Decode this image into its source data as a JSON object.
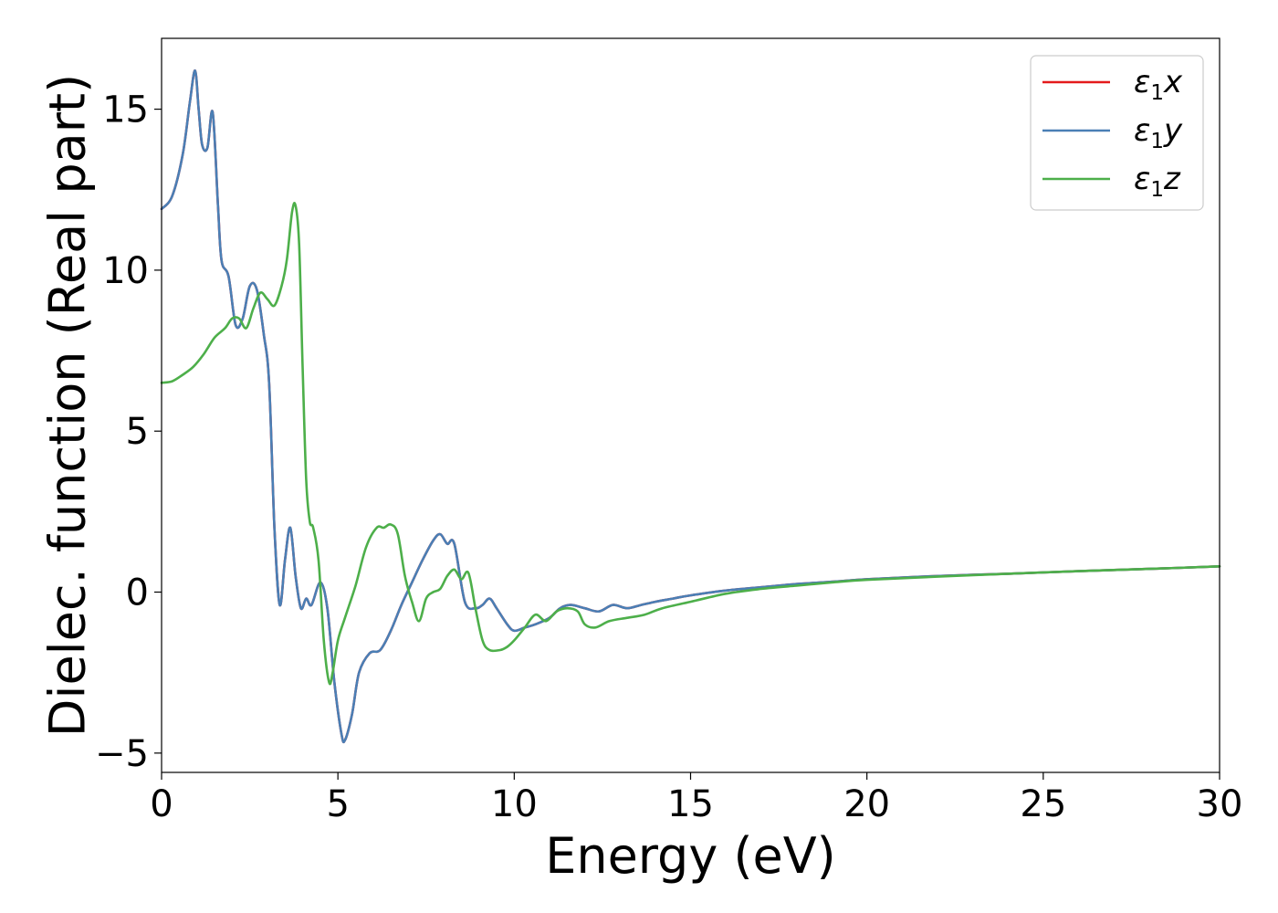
{
  "chart_data": {
    "type": "line",
    "xlabel": "Energy (eV)",
    "ylabel": "Dielec. function (Real part)",
    "xlim": [
      0,
      30
    ],
    "ylim": [
      -5.6,
      17.2
    ],
    "xticks": [
      0,
      5,
      10,
      15,
      20,
      25,
      30
    ],
    "xtick_labels": [
      "0",
      "5",
      "10",
      "15",
      "20",
      "25",
      "30"
    ],
    "yticks": [
      -5,
      0,
      5,
      10,
      15
    ],
    "ytick_labels": [
      "−5",
      "0",
      "5",
      "10",
      "15"
    ],
    "grid": false,
    "legend_position": "top-right",
    "series": [
      {
        "name": "ε₁x",
        "legend_base": "ε",
        "legend_sub": "1",
        "legend_suffix": "x",
        "color": "#e41a1c",
        "x": [
          0,
          0.3,
          0.6,
          0.8,
          0.95,
          1.05,
          1.15,
          1.3,
          1.45,
          1.6,
          1.7,
          1.9,
          2.1,
          2.3,
          2.5,
          2.7,
          2.9,
          3.05,
          3.2,
          3.35,
          3.5,
          3.65,
          3.8,
          3.95,
          4.1,
          4.25,
          4.5,
          4.7,
          4.9,
          5.1,
          5.2,
          5.4,
          5.6,
          5.9,
          6.2,
          6.5,
          6.8,
          7.1,
          7.4,
          7.7,
          7.9,
          8.1,
          8.3,
          8.6,
          8.9,
          9.1,
          9.3,
          9.5,
          9.8,
          10.0,
          10.3,
          10.6,
          11.0,
          11.3,
          11.6,
          12.0,
          12.4,
          12.8,
          13.2,
          13.6,
          14.0,
          14.5,
          15.0,
          16.0,
          17.0,
          18.0,
          19.0,
          20.0,
          22.0,
          24.0,
          26.0,
          28.0,
          30.0
        ],
        "values": [
          11.9,
          12.3,
          13.6,
          15.2,
          16.2,
          15.0,
          13.9,
          13.8,
          14.9,
          12.0,
          10.3,
          9.8,
          8.3,
          8.5,
          9.5,
          9.4,
          8.0,
          6.5,
          2.0,
          -0.4,
          1.0,
          2.0,
          0.5,
          -0.5,
          -0.2,
          -0.4,
          0.3,
          -0.5,
          -2.8,
          -4.4,
          -4.6,
          -3.8,
          -2.5,
          -1.9,
          -1.8,
          -1.2,
          -0.4,
          0.3,
          1.0,
          1.6,
          1.8,
          1.5,
          1.5,
          -0.3,
          -0.5,
          -0.4,
          -0.2,
          -0.5,
          -1.0,
          -1.2,
          -1.1,
          -1.0,
          -0.8,
          -0.5,
          -0.4,
          -0.5,
          -0.6,
          -0.4,
          -0.5,
          -0.4,
          -0.3,
          -0.2,
          -0.1,
          0.05,
          0.15,
          0.25,
          0.32,
          0.4,
          0.5,
          0.57,
          0.65,
          0.72,
          0.8
        ]
      },
      {
        "name": "ε₁y",
        "legend_base": "ε",
        "legend_sub": "1",
        "legend_suffix": "y",
        "color": "#4a7fb5",
        "x": [
          0,
          0.3,
          0.6,
          0.8,
          0.95,
          1.05,
          1.15,
          1.3,
          1.45,
          1.6,
          1.7,
          1.9,
          2.1,
          2.3,
          2.5,
          2.7,
          2.9,
          3.05,
          3.2,
          3.35,
          3.5,
          3.65,
          3.8,
          3.95,
          4.1,
          4.25,
          4.5,
          4.7,
          4.9,
          5.1,
          5.2,
          5.4,
          5.6,
          5.9,
          6.2,
          6.5,
          6.8,
          7.1,
          7.4,
          7.7,
          7.9,
          8.1,
          8.3,
          8.6,
          8.9,
          9.1,
          9.3,
          9.5,
          9.8,
          10.0,
          10.3,
          10.6,
          11.0,
          11.3,
          11.6,
          12.0,
          12.4,
          12.8,
          13.2,
          13.6,
          14.0,
          14.5,
          15.0,
          16.0,
          17.0,
          18.0,
          19.0,
          20.0,
          22.0,
          24.0,
          26.0,
          28.0,
          30.0
        ],
        "values": [
          11.9,
          12.3,
          13.6,
          15.2,
          16.2,
          15.0,
          13.9,
          13.8,
          14.9,
          12.0,
          10.3,
          9.8,
          8.3,
          8.5,
          9.5,
          9.4,
          8.0,
          6.5,
          2.0,
          -0.4,
          1.0,
          2.0,
          0.5,
          -0.5,
          -0.2,
          -0.4,
          0.3,
          -0.5,
          -2.8,
          -4.4,
          -4.6,
          -3.8,
          -2.5,
          -1.9,
          -1.8,
          -1.2,
          -0.4,
          0.3,
          1.0,
          1.6,
          1.8,
          1.5,
          1.5,
          -0.3,
          -0.5,
          -0.4,
          -0.2,
          -0.5,
          -1.0,
          -1.2,
          -1.1,
          -1.0,
          -0.8,
          -0.5,
          -0.4,
          -0.5,
          -0.6,
          -0.4,
          -0.5,
          -0.4,
          -0.3,
          -0.2,
          -0.1,
          0.05,
          0.15,
          0.25,
          0.32,
          0.4,
          0.5,
          0.57,
          0.65,
          0.72,
          0.8
        ]
      },
      {
        "name": "ε₁z",
        "legend_base": "ε",
        "legend_sub": "1",
        "legend_suffix": "z",
        "color": "#4daf4a",
        "x": [
          0,
          0.3,
          0.6,
          0.9,
          1.2,
          1.5,
          1.8,
          2.0,
          2.2,
          2.4,
          2.6,
          2.8,
          3.0,
          3.2,
          3.4,
          3.55,
          3.7,
          3.8,
          3.9,
          4.0,
          4.1,
          4.2,
          4.3,
          4.45,
          4.6,
          4.75,
          4.85,
          5.0,
          5.2,
          5.5,
          5.8,
          6.1,
          6.3,
          6.5,
          6.7,
          6.9,
          7.1,
          7.3,
          7.5,
          7.7,
          7.9,
          8.1,
          8.3,
          8.5,
          8.7,
          8.9,
          9.1,
          9.3,
          9.6,
          9.8,
          10.0,
          10.3,
          10.6,
          10.9,
          11.2,
          11.5,
          11.8,
          12.0,
          12.3,
          12.7,
          13.2,
          13.7,
          14.2,
          15.0,
          16.0,
          17.0,
          18.0,
          19.0,
          20.0,
          22.0,
          24.0,
          26.0,
          28.0,
          30.0
        ],
        "values": [
          6.5,
          6.55,
          6.75,
          7.0,
          7.4,
          7.9,
          8.2,
          8.5,
          8.5,
          8.2,
          8.8,
          9.3,
          9.1,
          8.9,
          9.5,
          10.3,
          11.8,
          12.0,
          10.8,
          7.0,
          3.5,
          2.2,
          2.0,
          1.0,
          -1.5,
          -2.8,
          -2.5,
          -1.5,
          -0.8,
          0.2,
          1.4,
          2.0,
          2.0,
          2.1,
          1.8,
          0.5,
          -0.3,
          -0.9,
          -0.2,
          0.0,
          0.1,
          0.5,
          0.7,
          0.4,
          0.6,
          -0.5,
          -1.5,
          -1.8,
          -1.8,
          -1.7,
          -1.5,
          -1.1,
          -0.7,
          -0.9,
          -0.6,
          -0.5,
          -0.6,
          -1.0,
          -1.1,
          -0.9,
          -0.8,
          -0.7,
          -0.5,
          -0.3,
          -0.05,
          0.1,
          0.2,
          0.3,
          0.38,
          0.48,
          0.57,
          0.65,
          0.72,
          0.8
        ]
      }
    ]
  }
}
